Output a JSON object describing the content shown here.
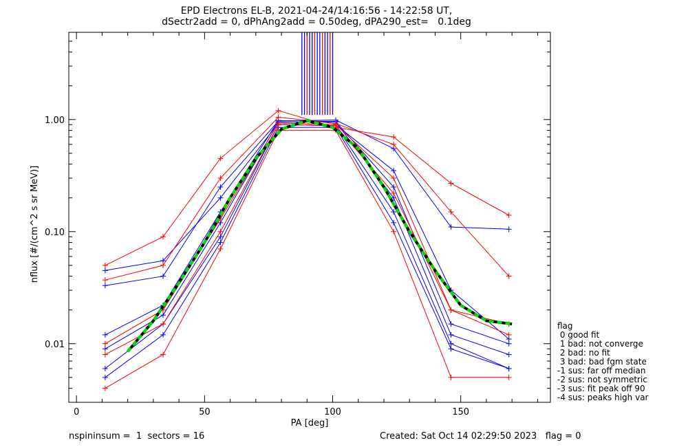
{
  "title_line1": "EPD Electrons EL-B, 2021-04-24/14:16:56 - 14:22:58 UT,",
  "title_line2": "dSectr2add = 0, dPhAng2add = 0.50deg, dPA290_est=   0.1deg",
  "footer": {
    "left": "nspininsum =  1  sectors = 16",
    "right": "Created: Sat Oct 14 02:29:50 2023   flag = 0"
  },
  "legend": {
    "title": "flag",
    "items": [
      " 0 good fit",
      " 1 bad: not converge",
      " 2 bad: no fit",
      " 3 bad: bad fgm state",
      "-1 sus: far off median",
      "-2 sus: not symmetric",
      "-3 sus: fit peak off 90",
      "-4 sus: peaks high var"
    ]
  },
  "colors": {
    "red_series": "#ff0000",
    "blue_series": "#0000ff",
    "fit_curve": "#00dd00",
    "median_curve": "#000000",
    "axes": "#000000"
  },
  "chart_data": {
    "type": "line",
    "xlabel": "PA [deg]",
    "ylabel": "nflux [#/(cm^2 s sr MeV)]",
    "xlim": [
      -3,
      185
    ],
    "ylim": [
      0.003,
      6.0
    ],
    "yscale": "log",
    "xticks": [
      0,
      50,
      100,
      150
    ],
    "yticks": [
      0.01,
      0.1,
      1.0
    ],
    "ytick_labels": [
      "0.01",
      "0.10",
      "1.00"
    ],
    "pa_bins": [
      11.2,
      33.8,
      56.2,
      78.8,
      101.2,
      123.8,
      146.2,
      168.8
    ],
    "representative_series": [
      {
        "color": "blue",
        "values": [
          0.009,
          0.018,
          0.12,
          0.95,
          0.95,
          0.2,
          0.012,
          0.008
        ]
      },
      {
        "color": "blue",
        "values": [
          0.006,
          0.015,
          0.09,
          0.9,
          0.88,
          0.15,
          0.01,
          0.006
        ]
      },
      {
        "color": "blue",
        "values": [
          0.012,
          0.022,
          0.15,
          0.98,
          0.96,
          0.25,
          0.015,
          0.01
        ]
      },
      {
        "color": "blue",
        "values": [
          0.045,
          0.055,
          0.2,
          0.93,
          0.9,
          0.35,
          0.03,
          0.011
        ]
      },
      {
        "color": "blue",
        "values": [
          0.005,
          0.012,
          0.08,
          0.85,
          0.85,
          0.12,
          0.009,
          0.006
        ]
      },
      {
        "color": "blue",
        "values": [
          0.033,
          0.04,
          0.25,
          0.97,
          0.99,
          0.55,
          0.11,
          0.105
        ]
      },
      {
        "color": "red",
        "values": [
          0.05,
          0.09,
          0.45,
          1.2,
          0.85,
          0.7,
          0.27,
          0.14
        ]
      },
      {
        "color": "red",
        "values": [
          0.008,
          0.015,
          0.1,
          0.9,
          0.88,
          0.22,
          0.02,
          0.012
        ]
      },
      {
        "color": "red",
        "values": [
          0.004,
          0.008,
          0.07,
          0.8,
          0.8,
          0.1,
          0.005,
          0.005
        ]
      },
      {
        "color": "red",
        "values": [
          0.037,
          0.05,
          0.3,
          1.05,
          0.92,
          0.6,
          0.15,
          0.04
        ]
      },
      {
        "color": "red",
        "values": [
          0.01,
          0.02,
          0.13,
          0.93,
          0.9,
          0.3,
          0.02,
          0.015
        ]
      }
    ],
    "fit_curve": {
      "color": "green",
      "pa": [
        20,
        30,
        40,
        50,
        60,
        70,
        80,
        90,
        100,
        110,
        120,
        130,
        140,
        150,
        160,
        170
      ],
      "values": [
        0.0085,
        0.016,
        0.035,
        0.08,
        0.2,
        0.45,
        0.82,
        0.98,
        0.85,
        0.55,
        0.25,
        0.1,
        0.045,
        0.022,
        0.016,
        0.015
      ]
    },
    "saturation_bars": {
      "color": "blue",
      "pa_range": [
        88,
        100
      ],
      "top": 6.0,
      "bottom": 1.1
    }
  }
}
